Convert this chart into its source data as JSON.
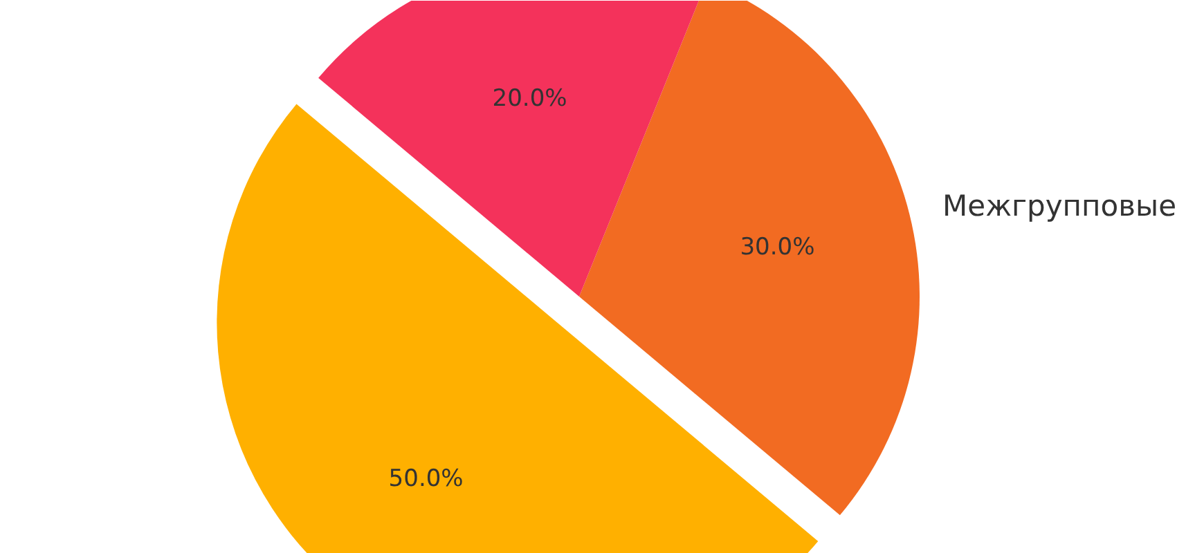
{
  "chart_data": {
    "type": "pie",
    "categories": [
      null,
      "Межгрупповые",
      null
    ],
    "values": [
      50,
      30,
      20
    ],
    "colors": [
      "#ffb000",
      "#f26b22",
      "#f4325b"
    ],
    "value_labels": [
      "50.0%",
      "30.0%",
      "20.0%"
    ]
  }
}
